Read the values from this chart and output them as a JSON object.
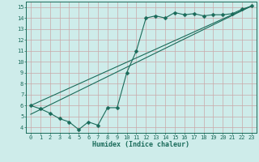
{
  "xlabel": "Humidex (Indice chaleur)",
  "background_color": "#ceecea",
  "grid_color": "#c9a8a8",
  "line_color": "#1a6b5a",
  "xlim": [
    -0.5,
    23.5
  ],
  "ylim": [
    3.5,
    15.5
  ],
  "xticks": [
    0,
    1,
    2,
    3,
    4,
    5,
    6,
    7,
    8,
    9,
    10,
    11,
    12,
    13,
    14,
    15,
    16,
    17,
    18,
    19,
    20,
    21,
    22,
    23
  ],
  "yticks": [
    4,
    5,
    6,
    7,
    8,
    9,
    10,
    11,
    12,
    13,
    14,
    15
  ],
  "line1_x": [
    0,
    1,
    2,
    3,
    4,
    5,
    6,
    7,
    8,
    9,
    10,
    11,
    12,
    13,
    14,
    15,
    16,
    17,
    18,
    19,
    20,
    21,
    22,
    23
  ],
  "line1_y": [
    6.0,
    5.7,
    5.3,
    4.8,
    4.5,
    3.8,
    4.5,
    4.2,
    5.8,
    5.8,
    9.0,
    11.0,
    14.0,
    14.2,
    14.0,
    14.5,
    14.3,
    14.4,
    14.2,
    14.3,
    14.3,
    14.4,
    14.8,
    15.1
  ],
  "line2_x": [
    0,
    23
  ],
  "line2_y": [
    6.0,
    15.1
  ],
  "line3_x": [
    0,
    23
  ],
  "line3_y": [
    5.2,
    15.1
  ],
  "tick_fontsize": 5.0,
  "xlabel_fontsize": 6.0,
  "marker_size": 2.5,
  "line_width": 0.8
}
